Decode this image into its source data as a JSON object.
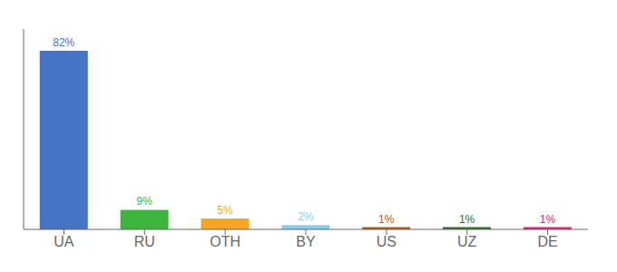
{
  "chart_data": {
    "type": "bar",
    "categories": [
      "UA",
      "RU",
      "OTH",
      "BY",
      "US",
      "UZ",
      "DE"
    ],
    "values": [
      82,
      9,
      5,
      2,
      1,
      1,
      1
    ],
    "value_labels": [
      "82%",
      "9%",
      "5%",
      "2%",
      "1%",
      "1%",
      "1%"
    ],
    "colors": [
      "#4472c4",
      "#3db53d",
      "#f5a623",
      "#87ceeb",
      "#b05a1a",
      "#2a6e2a",
      "#e8187c"
    ],
    "ylim": [
      0,
      92
    ],
    "data_labels": true,
    "tick_labels": "x",
    "grid": false
  }
}
